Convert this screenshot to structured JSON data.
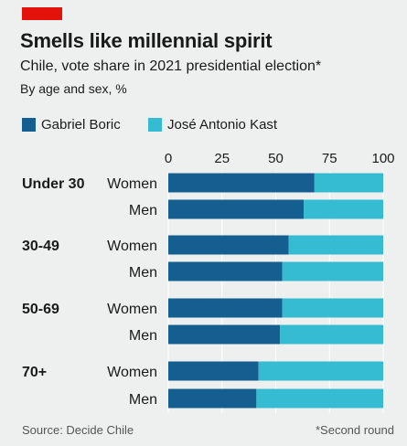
{
  "header": {
    "title": "Smells like millennial spirit",
    "subtitle": "Chile, vote share in 2021 presidential election*",
    "unit_note": "By age and sex, %"
  },
  "footer": {
    "source": "Source: Decide Chile",
    "note": "*Second round"
  },
  "colors": {
    "boric": "#155f90",
    "kast": "#36bcd2",
    "accent_tag": "#e3120b",
    "background": "#eef0ef",
    "gridline": "#ffffff"
  },
  "chart_data": {
    "type": "bar",
    "orientation": "horizontal",
    "stacked": true,
    "groups": [
      "Under 30",
      "30-49",
      "50-69",
      "70+"
    ],
    "categories": [
      "Women",
      "Men",
      "Women",
      "Men",
      "Women",
      "Men",
      "Women",
      "Men"
    ],
    "category_group": [
      0,
      0,
      1,
      1,
      2,
      2,
      3,
      3
    ],
    "series": [
      {
        "name": "Gabriel Boric",
        "values": [
          68,
          63,
          56,
          53,
          53,
          52,
          42,
          41
        ]
      },
      {
        "name": "José Antonio Kast",
        "values": [
          32,
          37,
          44,
          47,
          47,
          48,
          58,
          59
        ]
      }
    ],
    "xlim": [
      0,
      100
    ],
    "xticks": [
      0,
      25,
      50,
      75,
      100
    ],
    "tick_position": "top",
    "legend_position": "top-left",
    "grid": true
  }
}
